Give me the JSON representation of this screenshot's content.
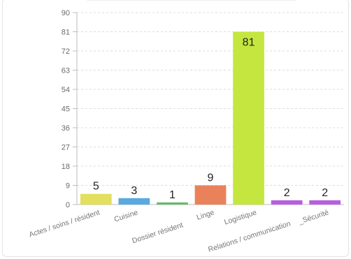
{
  "chart_data": {
    "type": "bar",
    "title": "",
    "xlabel": "",
    "ylabel": "",
    "ylim": [
      0,
      90
    ],
    "yticks": [
      0,
      9,
      18,
      27,
      36,
      45,
      54,
      63,
      72,
      81,
      90
    ],
    "grid": true,
    "legend": "none",
    "categories": [
      "Actes / soins / résident",
      "Cuisine",
      "Dossier résident",
      "Linge",
      "Logistique",
      "Relations / communication",
      "_Sécurité"
    ],
    "values": [
      5,
      3,
      1,
      9,
      81,
      2,
      2
    ],
    "colors": [
      "#e3df5f",
      "#5aa9df",
      "#66bb6a",
      "#e9825a",
      "#c5e63f",
      "#b75ee0",
      "#b75ee0"
    ]
  }
}
